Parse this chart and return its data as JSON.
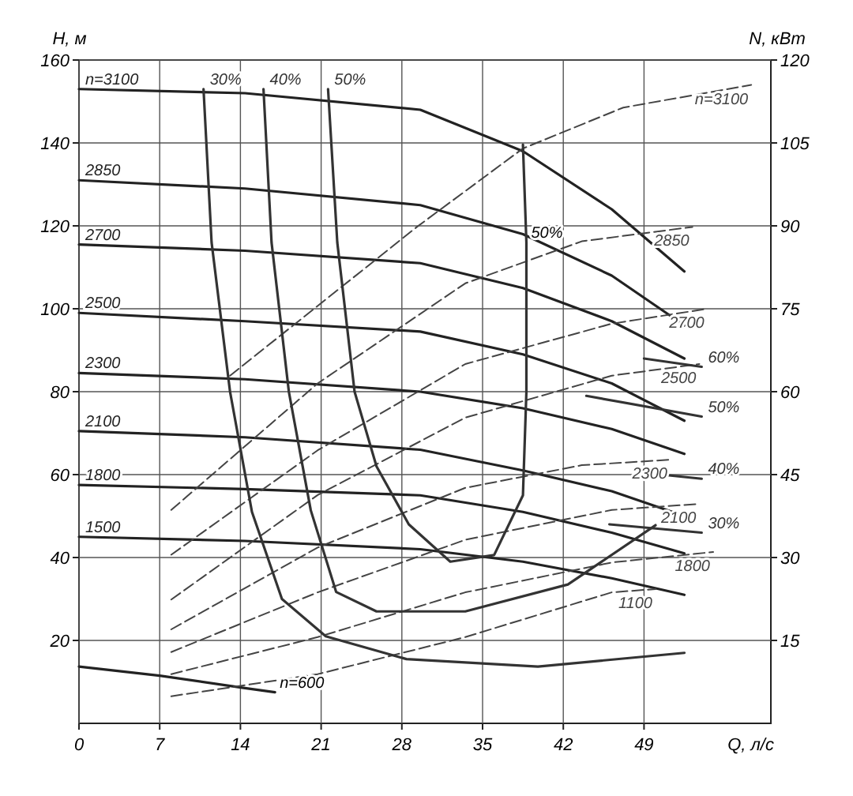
{
  "chart_data": {
    "type": "line",
    "xlabel": "Q, л/с",
    "ylabel": "H, м",
    "y2label": "N, кВт",
    "xlim": [
      0,
      60
    ],
    "xticks": [
      0,
      7,
      14,
      21,
      28,
      35,
      42,
      49
    ],
    "ylim": [
      0,
      160
    ],
    "yticks": [
      20,
      40,
      60,
      80,
      100,
      120,
      140,
      160
    ],
    "y2lim": [
      0,
      120
    ],
    "y2ticks": [
      15,
      30,
      45,
      60,
      75,
      90,
      105,
      120
    ],
    "grid": true,
    "marker": "none",
    "series": [
      {
        "name": "n=3100",
        "color": "#222222",
        "line_style": "solid",
        "x": [
          0,
          14.4,
          29.6,
          38.5,
          46.2,
          52.5
        ],
        "values": [
          153,
          152,
          148,
          138,
          124,
          109
        ]
      },
      {
        "name": "2850",
        "color": "#222222",
        "line_style": "solid",
        "x": [
          0,
          14.4,
          29.6,
          38.5,
          46.2,
          52.5
        ],
        "values": [
          131,
          129,
          125,
          118,
          108,
          96
        ]
      },
      {
        "name": "2700",
        "color": "#222222",
        "line_style": "solid",
        "x": [
          0,
          14.4,
          29.6,
          38.5,
          46.2,
          52.5
        ],
        "values": [
          115.5,
          114,
          111,
          105,
          97,
          88
        ]
      },
      {
        "name": "2500",
        "color": "#222222",
        "line_style": "solid",
        "x": [
          0,
          14.4,
          29.6,
          38.5,
          46.2,
          52.5
        ],
        "values": [
          99,
          97,
          94.5,
          89,
          82,
          73
        ]
      },
      {
        "name": "2300",
        "color": "#222222",
        "line_style": "solid",
        "x": [
          0,
          14.4,
          29.6,
          38.5,
          46.2,
          52.5
        ],
        "values": [
          84.5,
          83,
          80,
          76,
          71,
          65
        ]
      },
      {
        "name": "2100",
        "color": "#222222",
        "line_style": "solid",
        "x": [
          0,
          14.4,
          29.6,
          38.5,
          46.2,
          52.5
        ],
        "values": [
          70.5,
          69,
          66,
          61,
          56,
          50
        ]
      },
      {
        "name": "1800",
        "color": "#222222",
        "line_style": "solid",
        "x": [
          0,
          14.4,
          29.6,
          38.5,
          46.2,
          52.5
        ],
        "values": [
          57.5,
          56.5,
          55,
          51,
          46,
          41
        ]
      },
      {
        "name": "1500",
        "color": "#222222",
        "line_style": "solid",
        "x": [
          0,
          14.4,
          29.6,
          38.5,
          46.2,
          52.5
        ],
        "values": [
          45,
          44,
          42,
          39,
          35,
          31
        ]
      },
      {
        "color": "#222222",
        "line_style": "solid",
        "x": [
          0,
          7,
          14.4,
          17
        ],
        "values": [
          13.7,
          11.5,
          8.5,
          7.5
        ]
      },
      {
        "name": "n=3100",
        "color": "#444444",
        "line_style": "dashed",
        "axis": "y2",
        "x": [
          13.1,
          29.3,
          38.5,
          47.2,
          58.3
        ],
        "values": [
          62.9,
          89.8,
          104,
          111.4,
          115.5
        ]
      },
      {
        "name": "2850",
        "color": "#444444",
        "line_style": "dashed",
        "axis": "y2",
        "x": [
          8,
          20.7,
          33.5,
          43.6,
          53.2
        ],
        "values": [
          38.6,
          61.5,
          79.6,
          87.2,
          89.8
        ]
      },
      {
        "name": "2700",
        "color": "#444444",
        "line_style": "dashed",
        "axis": "y2",
        "x": [
          8,
          20.7,
          33.5,
          46.2,
          54.5
        ],
        "values": [
          30.5,
          49.4,
          65,
          72.3,
          75
        ]
      },
      {
        "name": "2500",
        "color": "#444444",
        "line_style": "dashed",
        "axis": "y2",
        "x": [
          8,
          20.7,
          33.5,
          46.2,
          53.8
        ],
        "values": [
          22.4,
          41.3,
          55.3,
          62.9,
          65
        ]
      },
      {
        "name": "2300",
        "color": "#444444",
        "line_style": "dashed",
        "axis": "y2",
        "x": [
          8,
          20.7,
          33.5,
          43.6,
          51.3
        ],
        "values": [
          17,
          31.8,
          42.6,
          46.7,
          47.7
        ]
      },
      {
        "name": "2100",
        "color": "#444444",
        "line_style": "dashed",
        "axis": "y2",
        "x": [
          8,
          20.7,
          33.5,
          46.2,
          53.8
        ],
        "values": [
          12.9,
          23.7,
          33.2,
          38.6,
          39.7
        ]
      },
      {
        "name": "1800",
        "color": "#444444",
        "line_style": "dashed",
        "axis": "y2",
        "x": [
          8,
          20.7,
          33.5,
          46.2,
          55
        ],
        "values": [
          8.9,
          15.6,
          23.7,
          29.1,
          31
        ]
      },
      {
        "name": "1100",
        "color": "#444444",
        "line_style": "dashed",
        "axis": "y2",
        "x": [
          8,
          20.7,
          33.5,
          46.2,
          50
        ],
        "values": [
          4.9,
          8.9,
          15.6,
          23.7,
          24.3
        ]
      },
      {
        "name": "30%",
        "color": "#333333",
        "line_style": "solid",
        "x": [
          10.8,
          11.5,
          13.1,
          15,
          17.6,
          21.4,
          28.4,
          39.8,
          52.5
        ],
        "values": [
          153,
          116,
          80,
          51,
          30,
          21,
          15.5,
          13.7,
          17
        ]
      },
      {
        "name": "40%",
        "color": "#333333",
        "line_style": "solid",
        "x": [
          16,
          16.7,
          18.2,
          20.1,
          22.3,
          25.8,
          33.5,
          42.4,
          50
        ],
        "values": [
          153,
          116,
          80,
          51.4,
          31.7,
          27,
          27,
          33.5,
          47.8
        ]
      },
      {
        "name": "60%",
        "color": "#333333",
        "line_style": "solid",
        "x": [
          54,
          49
        ],
        "values": [
          86,
          88
        ]
      },
      {
        "name": "50%",
        "color": "#333333",
        "line_style": "solid",
        "x": [
          54,
          44
        ],
        "values": [
          74,
          79
        ]
      },
      {
        "name": "40%",
        "color": "#333333",
        "line_style": "solid",
        "x": [
          54,
          50.5
        ],
        "values": [
          59,
          60
        ]
      },
      {
        "name": "30%",
        "color": "#333333",
        "line_style": "solid",
        "x": [
          54,
          46
        ],
        "values": [
          46,
          48
        ]
      },
      {
        "name": "50%",
        "color": "#333333",
        "line_style": "solid",
        "x": [
          21.6,
          22.4,
          23.9,
          25.8,
          28.6,
          32.2,
          36,
          38.5,
          38.8,
          38.8,
          38.5
        ],
        "values": [
          153,
          116,
          80,
          62,
          48,
          39,
          40.6,
          55,
          80,
          116,
          139.6
        ]
      }
    ],
    "annotations": [
      {
        "text": "50%",
        "x": 38.8,
        "y": 116
      },
      {
        "text": "n=600",
        "x": 17,
        "y": 7.5
      }
    ]
  }
}
